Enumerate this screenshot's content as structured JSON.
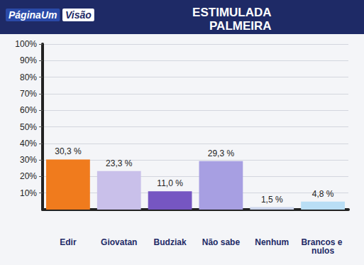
{
  "chart_data": {
    "type": "bar",
    "title": "ESTIMULADA",
    "subtitle": "PALMEIRA",
    "annotations": [
      "PáginaUm",
      "Visão"
    ],
    "categories": [
      "Edir",
      "Giovatan",
      "Budziak",
      "Não sabe",
      "Nenhum",
      "Brancos e nulos"
    ],
    "values": [
      30.3,
      23.3,
      11.0,
      29.3,
      1.5,
      4.8
    ],
    "value_labels": [
      "30,3 %",
      "23,3 %",
      "11,0 %",
      "29,3 %",
      "1,5 %",
      "4,8 %"
    ],
    "colors": [
      "#f07b1d",
      "#c9c0ea",
      "#7656c2",
      "#a79fe2",
      "#cdd6ec",
      "#b9def5"
    ],
    "ylim": [
      0,
      100
    ],
    "yticks": [
      {
        "value": 10,
        "label": "10%"
      },
      {
        "value": 20,
        "label": "20%"
      },
      {
        "value": 30,
        "label": "30%"
      },
      {
        "value": 40,
        "label": "40%"
      },
      {
        "value": 50,
        "label": "50%"
      },
      {
        "value": 60,
        "label": "60%"
      },
      {
        "value": 70,
        "label": "70%"
      },
      {
        "value": 80,
        "label": "80%"
      },
      {
        "value": 90,
        "label": "90%"
      },
      {
        "value": 100,
        "label": "100%"
      }
    ],
    "grid": true,
    "data_labels": true
  }
}
